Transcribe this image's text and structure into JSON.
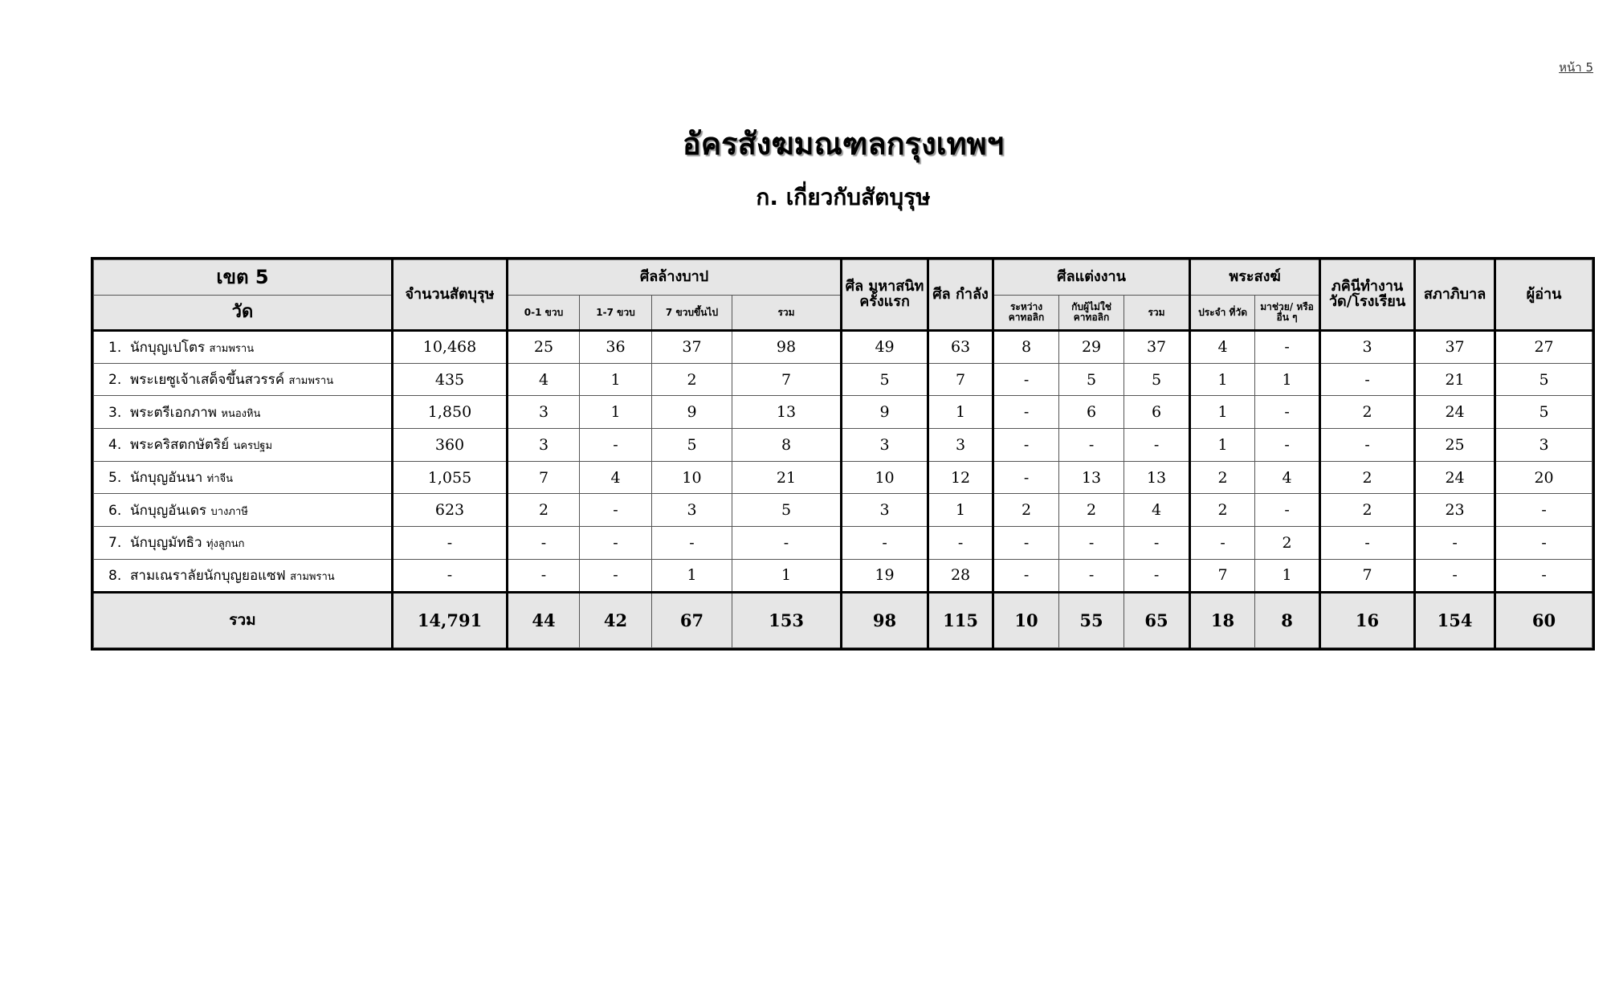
{
  "page_number": "หน้า 5",
  "title": "อัครสังฆมณฑลกรุงเทพฯ",
  "subtitle": "ก.   เกี่ยวกับสัตบุรุษ",
  "table": {
    "header": {
      "district": "เขต 5",
      "parish": "วัด",
      "faithful": "จำนวนสัตบุรุษ",
      "baptism": "ศีลล้างบาป",
      "baptism_sub": [
        "0-1 ขวบ",
        "1-7 ขวบ",
        "7 ขวบขึ้นไป",
        "รวม"
      ],
      "first_communion": "ศีล มหาสนิท ครั้งแรก",
      "confirmation": "ศีล กำลัง",
      "marriage": "ศีลแต่งงาน",
      "marriage_sub": [
        "ระหว่าง คาทอลิก",
        "กับผู้ไม่ใช่ คาทอลิก",
        "รวม"
      ],
      "priests": "พระสงฆ์",
      "priests_sub": [
        "ประจำ ที่วัด",
        "มาช่วย/ หรืออื่น ๆ"
      ],
      "sisters": "ภคินีทำงาน วัด/โรงเรียน",
      "council": "สภาภิบาล",
      "readers": "ผู้อ่าน"
    },
    "rows": [
      {
        "no": "1.",
        "name": "นักบุญเปโตร",
        "location": "สามพราน",
        "values": [
          "10,468",
          "25",
          "36",
          "37",
          "98",
          "49",
          "63",
          "8",
          "29",
          "37",
          "4",
          "-",
          "3",
          "37",
          "27"
        ]
      },
      {
        "no": "2.",
        "name": "พระเยซูเจ้าเสด็จขึ้นสวรรค์",
        "location": "สามพราน",
        "values": [
          "435",
          "4",
          "1",
          "2",
          "7",
          "5",
          "7",
          "-",
          "5",
          "5",
          "1",
          "1",
          "-",
          "21",
          "5"
        ]
      },
      {
        "no": "3.",
        "name": "พระตรีเอกภาพ",
        "location": "หนองหิน",
        "values": [
          "1,850",
          "3",
          "1",
          "9",
          "13",
          "9",
          "1",
          "-",
          "6",
          "6",
          "1",
          "-",
          "2",
          "24",
          "5"
        ]
      },
      {
        "no": "4.",
        "name": "พระคริสตกษัตริย์",
        "location": "นครปฐม",
        "values": [
          "360",
          "3",
          "-",
          "5",
          "8",
          "3",
          "3",
          "-",
          "-",
          "-",
          "1",
          "-",
          "-",
          "25",
          "3"
        ]
      },
      {
        "no": "5.",
        "name": "นักบุญอันนา",
        "location": "ท่าจีน",
        "values": [
          "1,055",
          "7",
          "4",
          "10",
          "21",
          "10",
          "12",
          "-",
          "13",
          "13",
          "2",
          "4",
          "2",
          "24",
          "20"
        ]
      },
      {
        "no": "6.",
        "name": "นักบุญอันเดร",
        "location": "บางภาษี",
        "values": [
          "623",
          "2",
          "-",
          "3",
          "5",
          "3",
          "1",
          "2",
          "2",
          "4",
          "2",
          "-",
          "2",
          "23",
          "-"
        ]
      },
      {
        "no": "7.",
        "name": "นักบุญมัทธิว",
        "location": "ทุ่งลูกนก",
        "values": [
          "-",
          "-",
          "-",
          "-",
          "-",
          "-",
          "-",
          "-",
          "-",
          "-",
          "-",
          "2",
          "-",
          "-",
          "-"
        ]
      },
      {
        "no": "8.",
        "name": "สามเณราลัยนักบุญยอแซฟ",
        "location": "สามพราน",
        "values": [
          "-",
          "-",
          "-",
          "1",
          "1",
          "19",
          "28",
          "-",
          "-",
          "-",
          "7",
          "1",
          "7",
          "-",
          "-"
        ]
      }
    ],
    "total": {
      "label": "รวม",
      "values": [
        "14,791",
        "44",
        "42",
        "67",
        "153",
        "98",
        "115",
        "10",
        "55",
        "65",
        "18",
        "8",
        "16",
        "154",
        "60"
      ]
    }
  }
}
